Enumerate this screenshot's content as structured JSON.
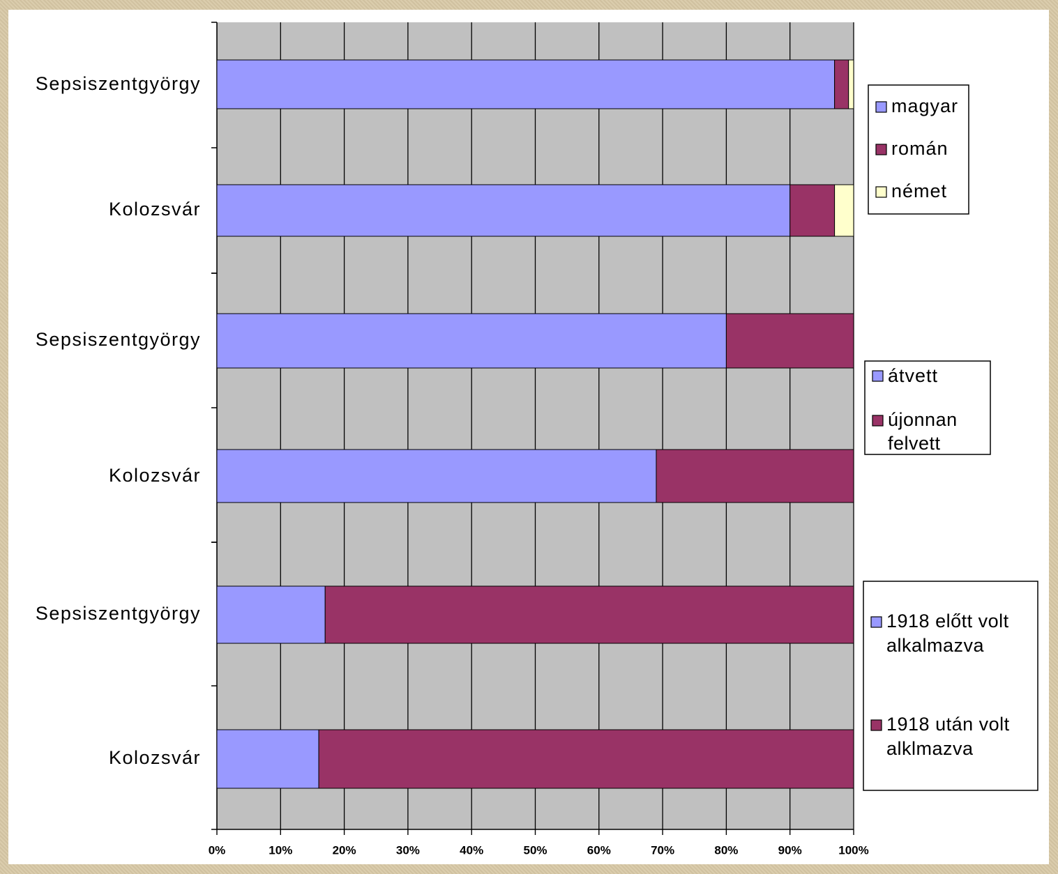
{
  "chart_data": [
    {
      "type": "bar",
      "orientation": "horizontal",
      "stacked": "percent",
      "categories": [
        "Sepsiszentgyörgy",
        "Kolozsvár"
      ],
      "series": [
        {
          "name": "magyar",
          "values": [
            97,
            90
          ],
          "color": "#9999ff"
        },
        {
          "name": "román",
          "values": [
            2.2,
            7
          ],
          "color": "#993366"
        },
        {
          "name": "német",
          "values": [
            0.8,
            3
          ],
          "color": "#ffffcc"
        }
      ],
      "xlim": [
        0,
        100
      ]
    },
    {
      "type": "bar",
      "orientation": "horizontal",
      "stacked": "percent",
      "categories": [
        "Sepsiszentgyörgy",
        "Kolozsvár"
      ],
      "series": [
        {
          "name": "átvett",
          "values": [
            80,
            69
          ],
          "color": "#9999ff"
        },
        {
          "name": "újonnan felvett",
          "values": [
            20,
            31
          ],
          "color": "#993366"
        }
      ],
      "xlim": [
        0,
        100
      ]
    },
    {
      "type": "bar",
      "orientation": "horizontal",
      "stacked": "percent",
      "categories": [
        "Sepsiszentgyörgy",
        "Kolozsvár"
      ],
      "series": [
        {
          "name": "1918 előtt volt alkalmazva",
          "values": [
            17,
            16
          ],
          "color": "#9999ff"
        },
        {
          "name": "1918 után volt alklmazva",
          "values": [
            83,
            84
          ],
          "color": "#993366"
        }
      ],
      "xlim": [
        0,
        100
      ]
    }
  ],
  "x_axis_ticks": [
    "0%",
    "10%",
    "20%",
    "30%",
    "40%",
    "50%",
    "60%",
    "70%",
    "80%",
    "90%",
    "100%"
  ],
  "colors": {
    "plot_background": "#c0c0c0",
    "gridline": "#000000",
    "frame": "#ffffff"
  }
}
